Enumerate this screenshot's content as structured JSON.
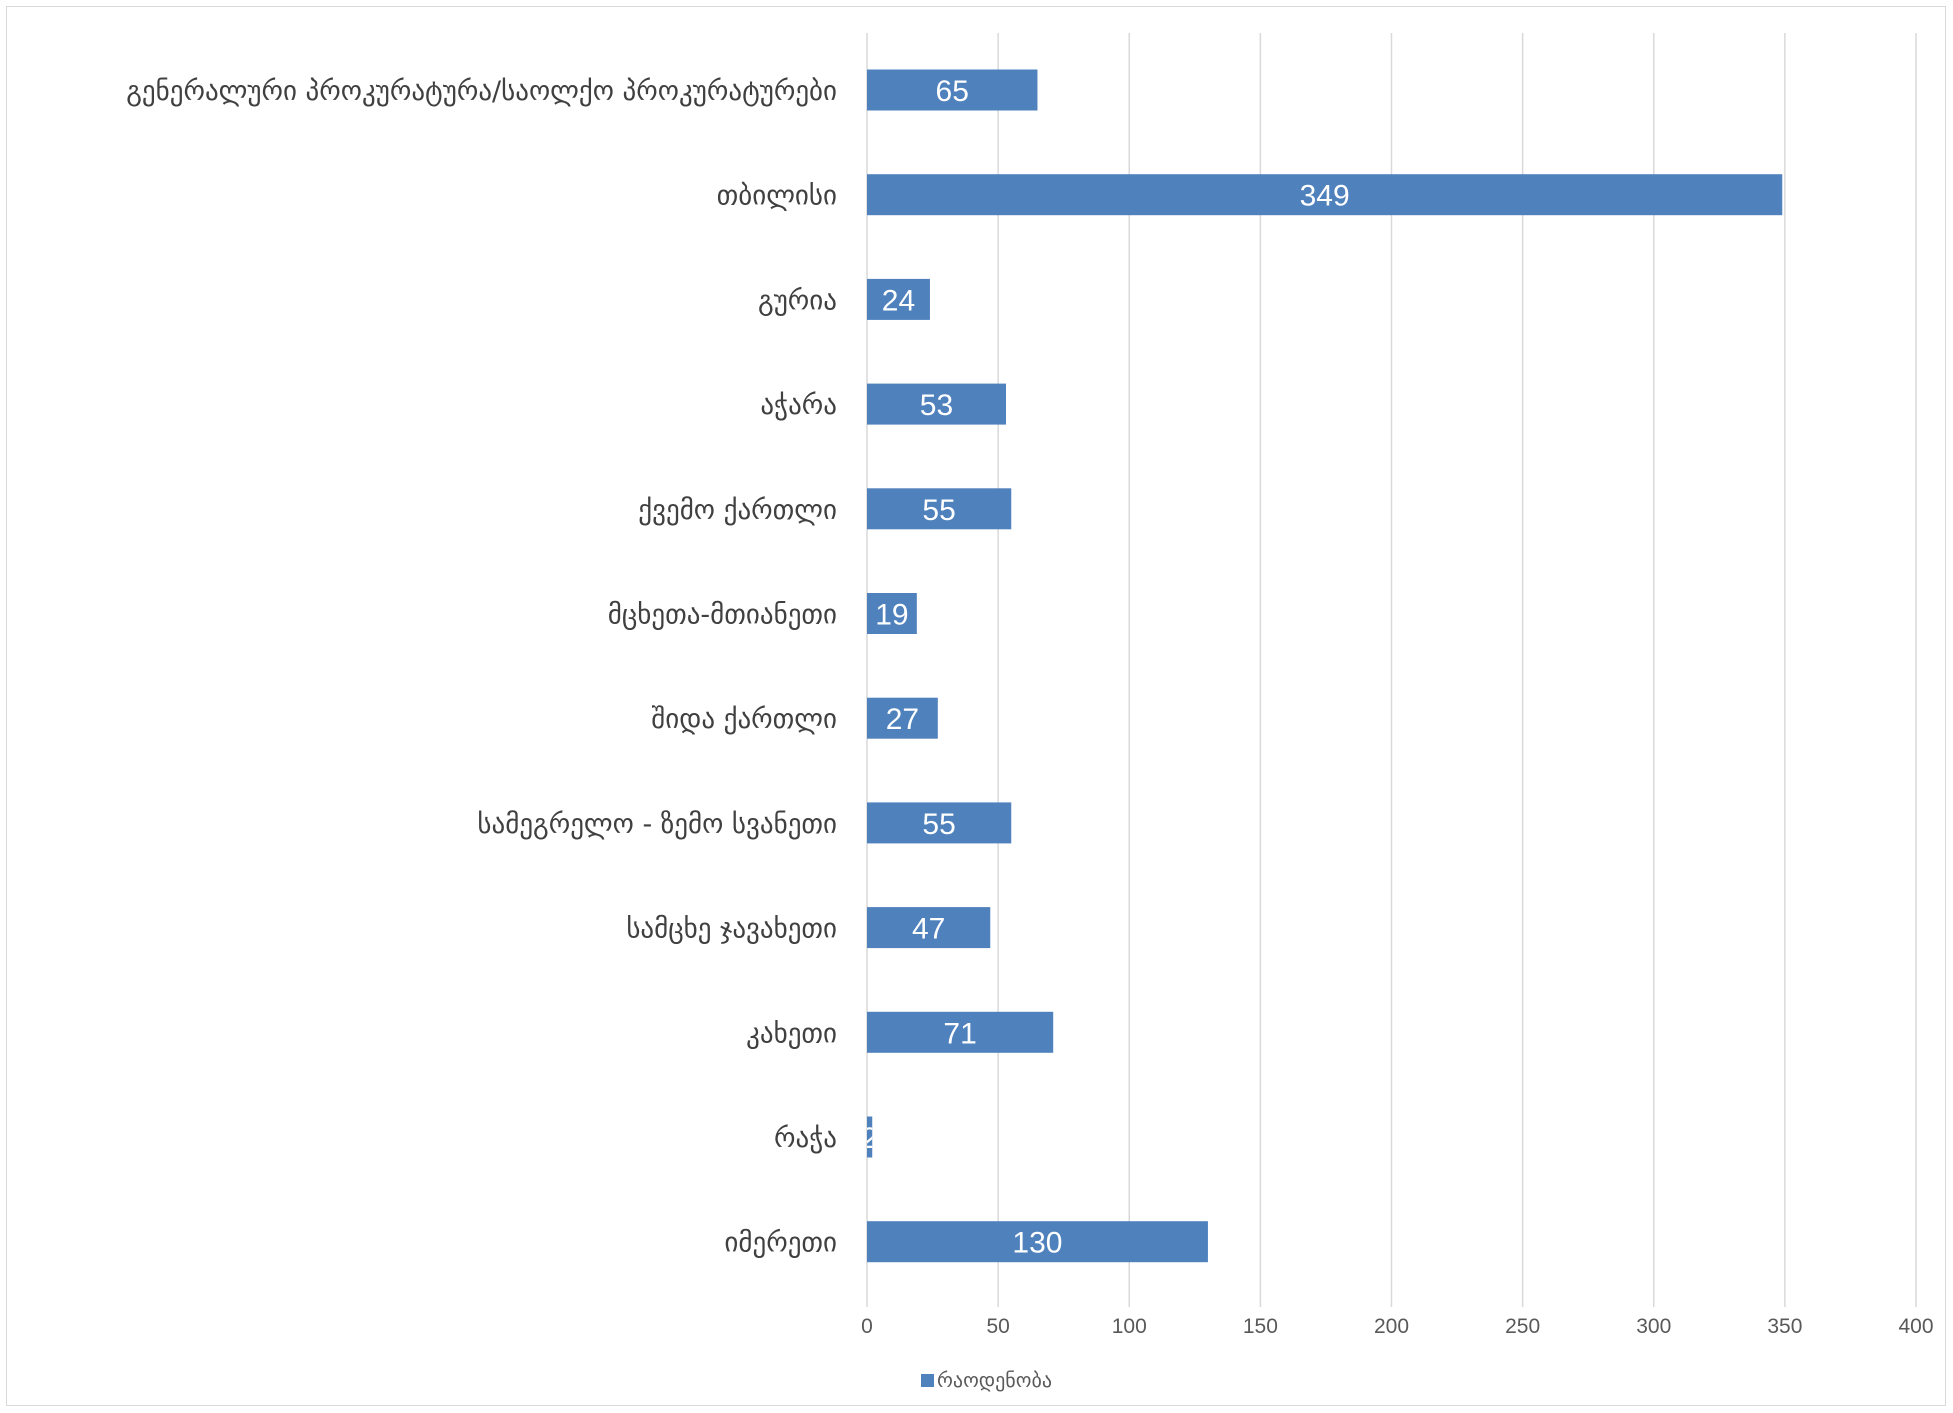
{
  "chart_data": {
    "type": "bar",
    "orientation": "horizontal",
    "categories": [
      "გენერალური პროკურატურა/საოლქო პროკურატურები",
      "თბილისი",
      "გურია",
      "აჭარა",
      "ქვემო ქართლი",
      "მცხეთა-მთიანეთი",
      "შიდა ქართლი",
      "სამეგრელო - ზემო სვანეთი",
      "სამცხე ჯავახეთი",
      "კახეთი",
      "რაჭა",
      "იმერეთი"
    ],
    "series": [
      {
        "name": "რაოდენობა",
        "color": "#4f81bd",
        "values": [
          65,
          349,
          24,
          53,
          55,
          19,
          27,
          55,
          47,
          71,
          2,
          130
        ]
      }
    ],
    "data_labels": [
      "65",
      "349",
      "24",
      "53",
      "55",
      "19",
      "27",
      "55",
      "47",
      "71",
      "2",
      "130"
    ],
    "xlim": [
      0,
      400
    ],
    "x_ticks": [
      0,
      50,
      100,
      150,
      200,
      250,
      300,
      350,
      400
    ],
    "x_tick_labels": [
      "0",
      "50",
      "100",
      "150",
      "200",
      "250",
      "300",
      "350",
      "400"
    ],
    "grid": "vertical",
    "legend_position": "bottom",
    "title": "",
    "xlabel": "",
    "ylabel": ""
  }
}
